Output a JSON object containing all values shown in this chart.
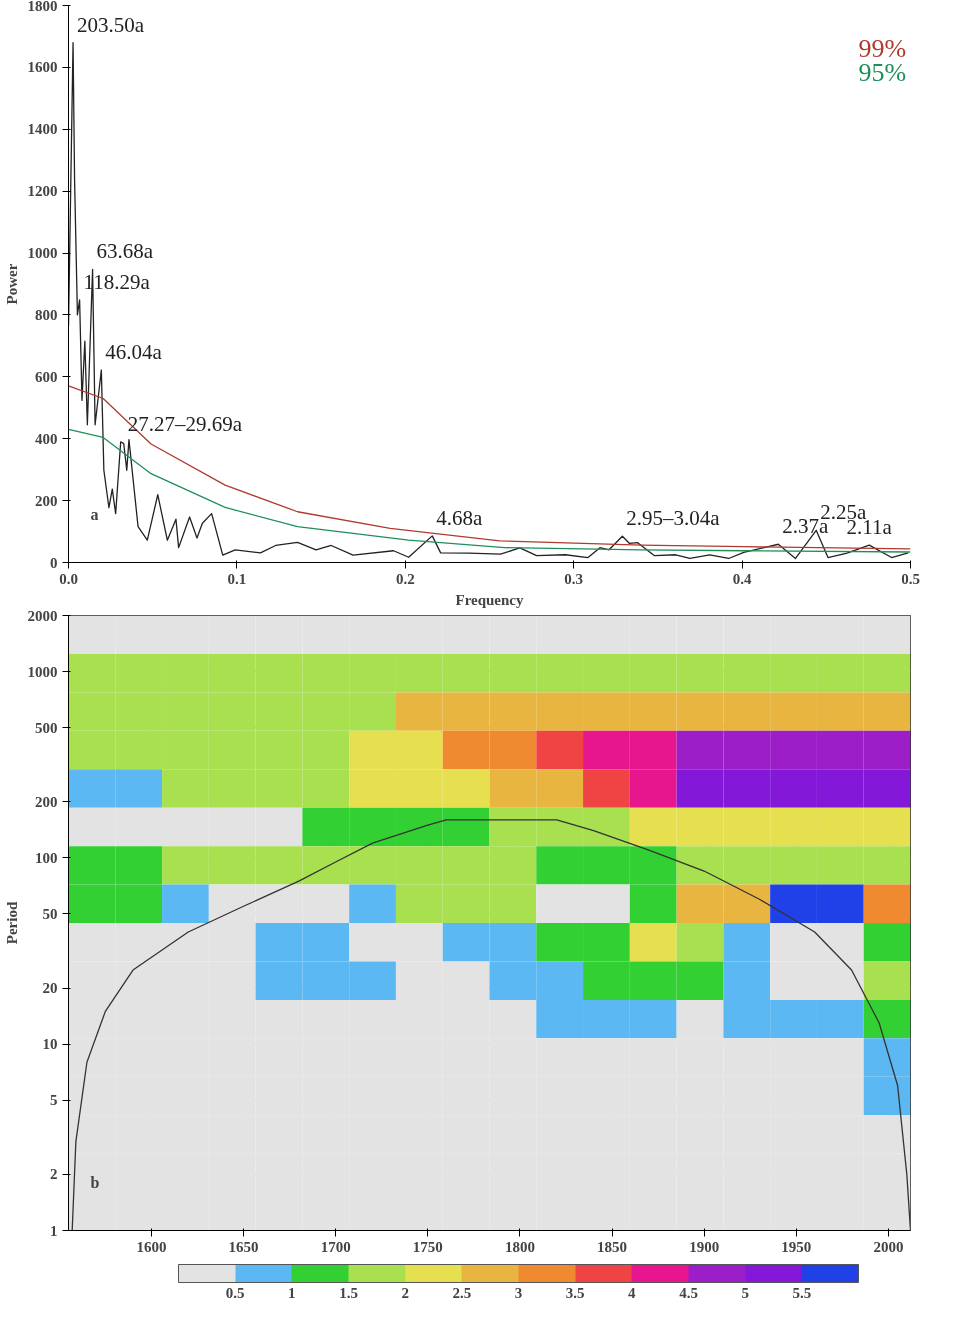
{
  "chart_data": [
    {
      "type": "line",
      "xlabel": "Frequency",
      "ylabel": "Power",
      "xlim": [
        0,
        0.5
      ],
      "ylim": [
        0,
        1800
      ],
      "xticks": [
        {
          "value": 0,
          "label": "0.0"
        },
        0.1,
        0.2,
        0.3,
        0.4,
        0.5
      ],
      "yticks": [
        0,
        200,
        400,
        600,
        800,
        1000,
        1200,
        1400,
        1600,
        1800
      ],
      "legend": "top right",
      "grid": false,
      "marker": "none",
      "line_style": "solid",
      "series": [
        {
          "color": "#222222",
          "x": [
            0.0,
            0.0027,
            0.0036,
            0.0053,
            0.0066,
            0.008,
            0.0097,
            0.0112,
            0.0143,
            0.0158,
            0.0195,
            0.021,
            0.024,
            0.026,
            0.028,
            0.031,
            0.0328,
            0.0346,
            0.0359,
            0.0413,
            0.0468,
            0.053,
            0.0587,
            0.0638,
            0.0654,
            0.0719,
            0.0763,
            0.0795,
            0.085,
            0.0916,
            0.099,
            0.114,
            0.123,
            0.136,
            0.147,
            0.156,
            0.169,
            0.193,
            0.202,
            0.216,
            0.221,
            0.238,
            0.2565,
            0.268,
            0.278,
            0.295,
            0.3085,
            0.3156,
            0.321,
            0.3289,
            0.333,
            0.338,
            0.348,
            0.3606,
            0.369,
            0.3808,
            0.392,
            0.401,
            0.4215,
            0.4317,
            0.444,
            0.451,
            0.4623,
            0.4755,
            0.4888,
            0.4986
          ],
          "values": [
            763,
            1680,
            1239,
            800,
            849,
            524,
            715,
            445,
            947,
            445,
            622,
            298,
            177,
            237,
            158,
            390,
            384,
            298,
            397,
            116,
            72,
            219,
            72,
            140,
            48,
            147,
            79,
            127,
            158,
            24,
            41,
            31,
            55,
            65,
            41,
            55,
            24,
            38,
            17,
            86,
            31,
            30,
            27,
            47,
            22,
            25,
            16,
            48,
            41,
            85,
            62,
            64,
            22,
            25,
            13,
            25,
            13,
            33,
            59,
            13,
            104,
            16,
            30,
            56,
            16,
            31
          ]
        },
        {
          "name": "99%",
          "color": "#b03a2e",
          "x": [
            0.0,
            0.0206,
            0.049,
            0.093,
            0.136,
            0.191,
            0.256,
            0.34,
            0.401,
            0.5
          ],
          "values": [
            571,
            530,
            383,
            250,
            164,
            110,
            70,
            56,
            51,
            44
          ]
        },
        {
          "name": "95%",
          "color": "#1e8f5a",
          "x": [
            0.0,
            0.0206,
            0.049,
            0.093,
            0.136,
            0.202,
            0.259,
            0.34,
            0.401,
            0.5
          ],
          "values": [
            430,
            404,
            287,
            178,
            116,
            72,
            48,
            41,
            38,
            34
          ]
        }
      ],
      "annotations": [
        {
          "text": "203.50a",
          "x": 0.0027,
          "y": 1680
        },
        {
          "text": "63.68a",
          "x": 0.0143,
          "y": 947
        },
        {
          "text": "118.29a",
          "x": 0.0066,
          "y": 849
        },
        {
          "text": "46.04a",
          "x": 0.0195,
          "y": 622
        },
        {
          "text": "27.27–29.69a",
          "x": 0.0328,
          "y": 390
        },
        {
          "text": "4.68a",
          "x": 0.216,
          "y": 86
        },
        {
          "text": "2.95–3.04a",
          "x": 0.3289,
          "y": 85
        },
        {
          "text": "2.37a",
          "x": 0.4215,
          "y": 59
        },
        {
          "text": "2.25a",
          "x": 0.444,
          "y": 104
        },
        {
          "text": "2.11a",
          "x": 0.4755,
          "y": 56
        },
        "a"
      ]
    },
    {
      "type": "heatmap",
      "ylabel": "Period",
      "xlim": [
        1555,
        2012
      ],
      "ylim": [
        1,
        2000
      ],
      "log": "y",
      "grid": true,
      "xticks": [
        1600,
        1650,
        1700,
        1750,
        1800,
        1850,
        1900,
        1950,
        2000
      ],
      "yticks": [
        1,
        2,
        5,
        10,
        20,
        50,
        100,
        200,
        500,
        1000,
        2000
      ],
      "clim": [
        0,
        6
      ],
      "cticks": [
        0.5,
        1,
        1.5,
        2,
        2.5,
        3,
        3.5,
        4,
        4.5,
        5,
        5.5
      ],
      "colors": [
        "#e3e3e3",
        "#5cb8f2",
        "#33d033",
        "#a8e050",
        "#e6e050",
        "#e8b540",
        "#f08a30",
        "#f04444",
        "#e8168e",
        "#9c1ec8",
        "#8418d8",
        "#2040e8"
      ],
      "cells": [
        [
          0.3,
          0.3,
          0.3,
          0.3,
          0.3,
          0.3,
          0.3,
          0.3,
          0.3,
          0.3,
          0.3,
          0.3,
          0.3,
          0.3,
          0.3,
          0.3,
          0.3,
          0.3
        ],
        [
          1.7,
          1.7,
          1.7,
          1.7,
          1.7,
          1.7,
          1.7,
          1.7,
          1.7,
          1.7,
          1.7,
          1.7,
          1.7,
          1.7,
          1.7,
          1.7,
          1.7,
          1.7
        ],
        [
          1.8,
          1.8,
          1.8,
          1.8,
          1.8,
          1.8,
          1.8,
          2.6,
          2.6,
          2.6,
          2.6,
          2.6,
          2.6,
          2.6,
          2.6,
          2.6,
          2.6,
          2.6
        ],
        [
          1.8,
          1.8,
          1.8,
          1.8,
          1.8,
          1.8,
          2.2,
          2.2,
          3.2,
          3.2,
          3.7,
          4.2,
          4.2,
          4.6,
          4.6,
          4.6,
          4.6,
          4.6
        ],
        [
          0.8,
          0.8,
          1.5,
          1.5,
          1.5,
          1.5,
          2.2,
          2.2,
          2.2,
          2.8,
          2.8,
          3.6,
          4.3,
          5.2,
          5.2,
          5.2,
          5.2,
          5.2
        ],
        [
          0.3,
          0.3,
          0.3,
          0.3,
          0.3,
          1.2,
          1.2,
          1.2,
          1.2,
          1.8,
          1.8,
          1.8,
          2.2,
          2.2,
          2.2,
          2.2,
          2.2,
          2.2
        ],
        [
          1.0,
          1.0,
          1.6,
          1.6,
          1.6,
          1.6,
          1.9,
          1.9,
          1.9,
          1.9,
          1.3,
          1.3,
          1.3,
          1.5,
          1.5,
          1.5,
          1.5,
          1.7
        ],
        [
          1.0,
          1.0,
          0.8,
          0.3,
          0.3,
          0.3,
          0.9,
          1.6,
          1.6,
          1.6,
          0.3,
          0.3,
          1.2,
          2.8,
          2.8,
          5.6,
          5.6,
          3.0
        ],
        [
          0.3,
          0.3,
          0.3,
          0.3,
          0.8,
          0.8,
          0.3,
          0.3,
          0.8,
          0.8,
          1.3,
          1.3,
          2.2,
          1.5,
          0.8,
          0.3,
          0.3,
          1.3
        ],
        [
          0.3,
          0.3,
          0.3,
          0.3,
          0.8,
          0.8,
          0.8,
          0.3,
          0.3,
          0.8,
          0.8,
          1.2,
          1.2,
          1.2,
          0.8,
          0.3,
          0.3,
          1.6
        ],
        [
          0.3,
          0.3,
          0.3,
          0.3,
          0.3,
          0.3,
          0.3,
          0.3,
          0.3,
          0.3,
          0.8,
          0.8,
          0.8,
          0.3,
          0.8,
          0.8,
          0.8,
          1.2
        ],
        [
          0.3,
          0.3,
          0.3,
          0.3,
          0.3,
          0.3,
          0.3,
          0.3,
          0.3,
          0.3,
          0.3,
          0.3,
          0.3,
          0.3,
          0.3,
          0.3,
          0.3,
          0.8
        ],
        [
          0.3,
          0.3,
          0.3,
          0.3,
          0.3,
          0.3,
          0.3,
          0.3,
          0.3,
          0.3,
          0.3,
          0.3,
          0.3,
          0.3,
          0.3,
          0.3,
          0.3,
          0.8
        ],
        [
          0.3,
          0.3,
          0.3,
          0.3,
          0.3,
          0.3,
          0.3,
          0.3,
          0.3,
          0.3,
          0.3,
          0.3,
          0.3,
          0.3,
          0.3,
          0.3,
          0.3,
          0.3
        ],
        [
          0.3,
          0.3,
          0.3,
          0.3,
          0.3,
          0.3,
          0.3,
          0.3,
          0.3,
          0.3,
          0.3,
          0.3,
          0.3,
          0.3,
          0.3,
          0.3,
          0.3,
          0.3
        ],
        [
          0.3,
          0.3,
          0.3,
          0.3,
          0.3,
          0.3,
          0.3,
          0.3,
          0.3,
          0.3,
          0.3,
          0.3,
          0.3,
          0.3,
          0.3,
          0.3,
          0.3,
          0.3
        ]
      ],
      "series": [
        {
          "type": "line",
          "color": "#333333",
          "x": [
            1557,
            1559,
            1565,
            1575,
            1590,
            1620,
            1650,
            1680,
            1700,
            1720,
            1750,
            1760,
            1820,
            1840,
            1870,
            1900,
            1930,
            1960,
            1980,
            1995,
            2005,
            2010,
            2012
          ],
          "values": [
            1,
            3,
            8,
            15,
            25,
            40,
            55,
            75,
            95,
            120,
            150,
            160,
            160,
            140,
            110,
            85,
            60,
            40,
            25,
            13,
            6,
            2,
            1
          ]
        }
      ],
      "annotations": [
        "b"
      ]
    }
  ]
}
